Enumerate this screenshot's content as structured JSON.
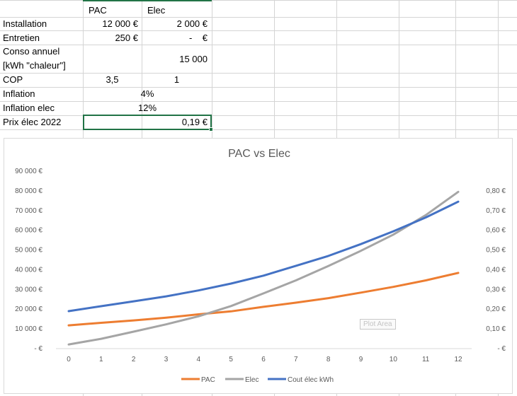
{
  "sheet": {
    "header": {
      "pac": "PAC",
      "elec": "Elec"
    },
    "rows": [
      {
        "label": "Installation",
        "pac": "12 000 €",
        "elec": "2 000 €"
      },
      {
        "label": "Entretien",
        "pac": "250 €",
        "elec": "-    €"
      },
      {
        "label_line1": "Conso annuel",
        "label_line2": "[kWh \"chaleur\"]",
        "elec": "15 000"
      },
      {
        "label": "COP",
        "pac": "3,5",
        "elec": "1"
      },
      {
        "label": "Inflation",
        "merged": "4%"
      },
      {
        "label": "Inflation elec",
        "merged": "12%"
      },
      {
        "label": "Prix élec 2022",
        "elec": "0,19 €"
      }
    ]
  },
  "chart_data": {
    "type": "line",
    "title": "PAC vs Elec",
    "xlabel": "",
    "ylabel": "",
    "x": [
      0,
      1,
      2,
      3,
      4,
      5,
      6,
      7,
      8,
      9,
      10,
      11,
      12
    ],
    "x_tick_labels": [
      "0",
      "1",
      "2",
      "3",
      "4",
      "5",
      "6",
      "7",
      "8",
      "9",
      "10",
      "11",
      "12"
    ],
    "y_left": {
      "range": [
        0,
        90000
      ],
      "tick_labels": [
        "-   €",
        "10 000 €",
        "20 000 €",
        "30 000 €",
        "40 000 €",
        "50 000 €",
        "60 000 €",
        "70 000 €",
        "80 000 €",
        "90 000 €"
      ]
    },
    "y_right": {
      "range": [
        0,
        0.9
      ],
      "tick_labels": [
        "-   €",
        "0,10 €",
        "0,20 €",
        "0,30 €",
        "0,40 €",
        "0,50 €",
        "0,60 €",
        "0,70 €",
        "0,80 €"
      ]
    },
    "series": [
      {
        "name": "PAC",
        "axis": "left",
        "color": "#ed7d31",
        "values": [
          11800,
          13100,
          14300,
          15700,
          17400,
          18900,
          21200,
          23300,
          25600,
          28400,
          31300,
          34600,
          38400
        ]
      },
      {
        "name": "Elec",
        "axis": "left",
        "color": "#a5a5a5",
        "values": [
          2100,
          5000,
          8600,
          12300,
          16400,
          21600,
          28000,
          34600,
          41900,
          49600,
          57800,
          67700,
          79500
        ]
      },
      {
        "name": "Cout élec kWh",
        "axis": "right",
        "color": "#4472c4",
        "values": [
          0.19,
          0.215,
          0.24,
          0.265,
          0.295,
          0.33,
          0.37,
          0.42,
          0.47,
          0.53,
          0.595,
          0.665,
          0.745
        ]
      }
    ],
    "legend": [
      "PAC",
      "Elec",
      "Cout élec kWh"
    ],
    "legend_position": "bottom",
    "gridlines": false,
    "tooltip": "Plot Area"
  }
}
